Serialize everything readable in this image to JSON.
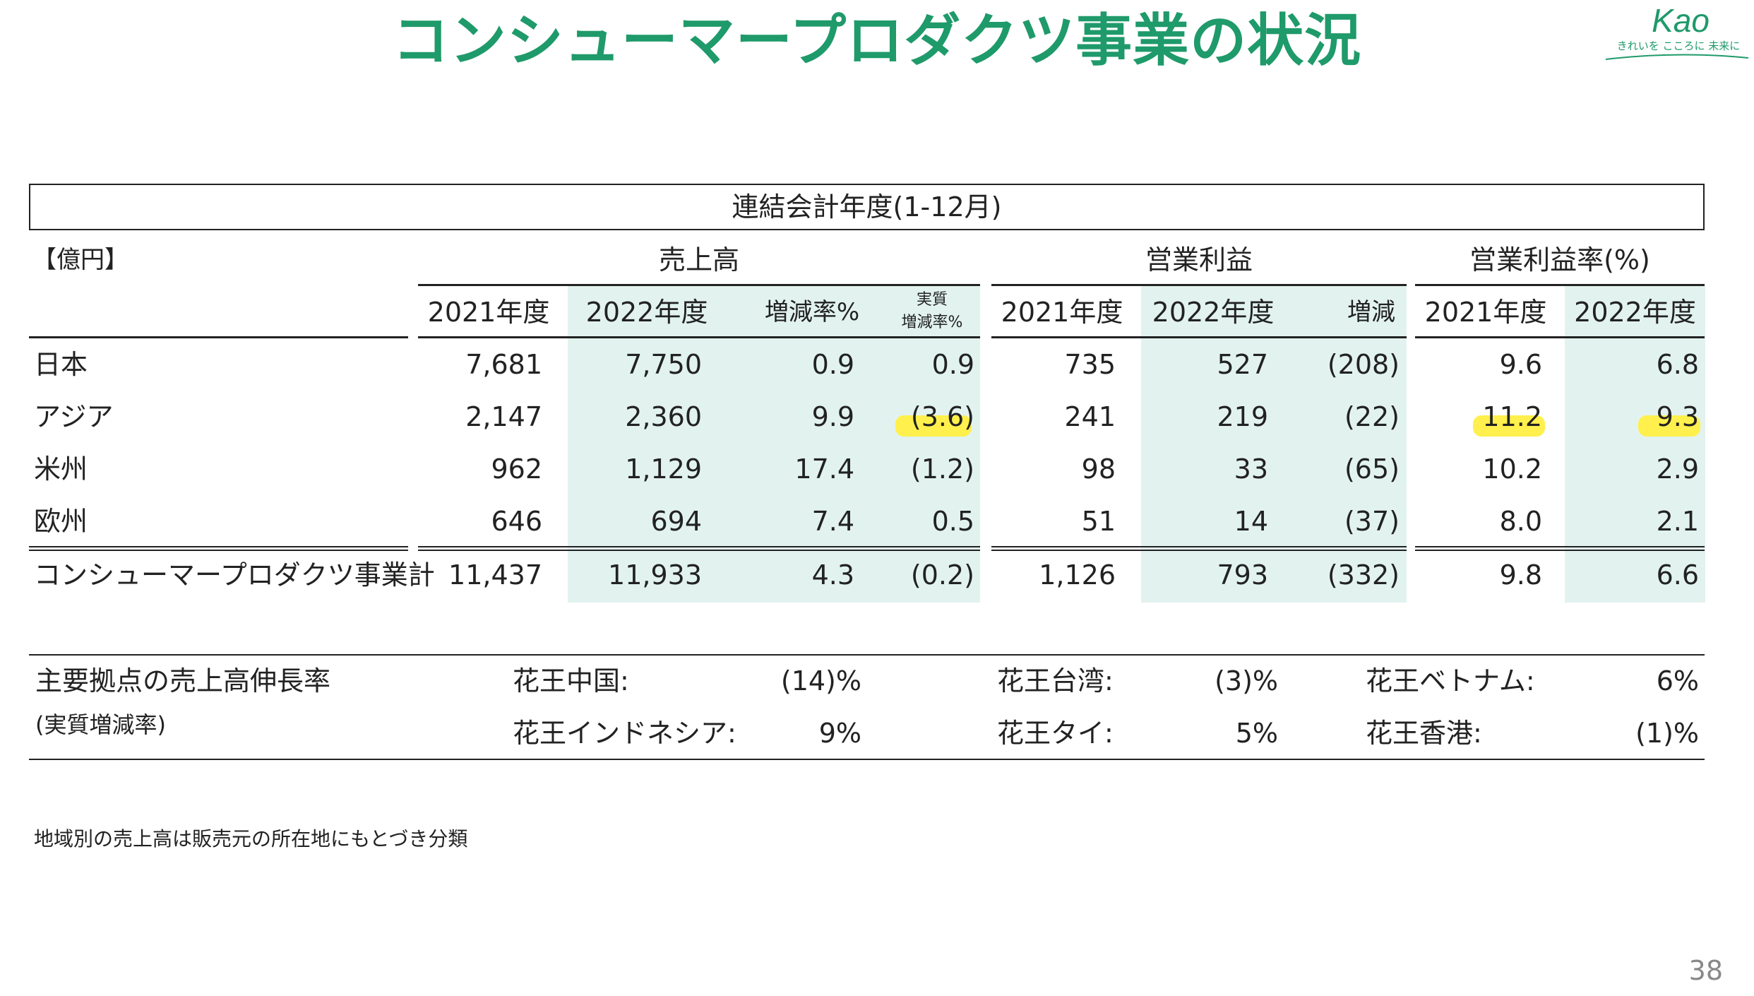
{
  "title": "コンシューマープロダクツ事業の状況",
  "logo": {
    "brand": "Kao",
    "tagline": "きれいを こころに 未来に"
  },
  "banner": "連結会計年度(1-12月)",
  "unit": "【億円】",
  "groups": {
    "sales": "売上高",
    "op": "営業利益",
    "margin": "営業利益率(%)"
  },
  "columns": {
    "s2021": "2021年度",
    "s2022": "2022年度",
    "s_rate": "増減率%",
    "s_real_1": "実質",
    "s_real_2": "増減率%",
    "o2021": "2021年度",
    "o2022": "2022年度",
    "o_diff": "増減",
    "m2021": "2021年度",
    "m2022": "2022年度"
  },
  "rows": [
    {
      "name": "日本",
      "v": [
        "7,681",
        "7,750",
        "0.9",
        "0.9",
        "735",
        "527",
        "(208)",
        "9.6",
        "6.8"
      ]
    },
    {
      "name": "アジア",
      "v": [
        "2,147",
        "2,360",
        "9.9",
        "(3.6)",
        "241",
        "219",
        "(22)",
        "11.2",
        "9.3"
      ]
    },
    {
      "name": "米州",
      "v": [
        "962",
        "1,129",
        "17.4",
        "(1.2)",
        "98",
        "33",
        "(65)",
        "10.2",
        "2.9"
      ]
    },
    {
      "name": "欧州",
      "v": [
        "646",
        "694",
        "7.4",
        "0.5",
        "51",
        "14",
        "(37)",
        "8.0",
        "2.1"
      ]
    }
  ],
  "total": {
    "name": "コンシューマープロダクツ事業計",
    "v": [
      "11,437",
      "11,933",
      "4.3",
      "(0.2)",
      "1,126",
      "793",
      "(332)",
      "9.8",
      "6.6"
    ]
  },
  "highlights": {
    "accent": "#fff04d",
    "shade": "#e2f3ef",
    "brand": "#1f9a6a"
  },
  "growth": {
    "label": "主要拠点の売上高伸長率",
    "sublabel": "(実質増減率)",
    "items": [
      {
        "name": "花王中国:",
        "value": "(14)%"
      },
      {
        "name": "花王台湾:",
        "value": "(3)%"
      },
      {
        "name": "花王ベトナム:",
        "value": "6%"
      },
      {
        "name": "花王インドネシア:",
        "value": "9%"
      },
      {
        "name": "花王タイ:",
        "value": "5%"
      },
      {
        "name": "花王香港:",
        "value": "(1)%"
      }
    ]
  },
  "note": "地域別の売上高は販売元の所在地にもとづき分類",
  "page_number": "38"
}
